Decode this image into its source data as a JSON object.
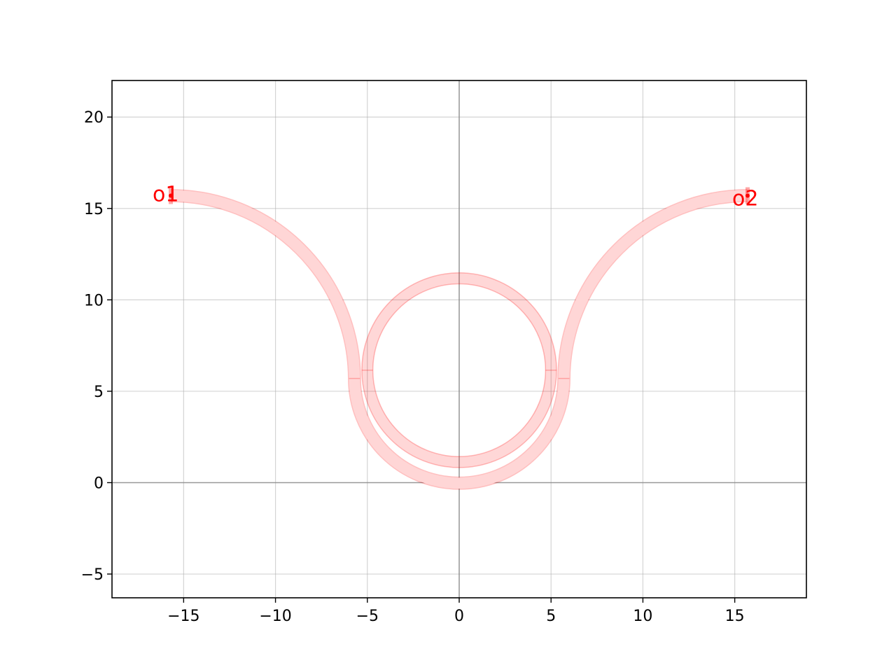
{
  "chart_data": {
    "type": "diagram",
    "xlim": [
      -18.9,
      18.9
    ],
    "ylim": [
      -6.3,
      22.0
    ],
    "x_ticks": [
      -15,
      -10,
      -5,
      0,
      5,
      10,
      15
    ],
    "y_ticks": [
      -5,
      0,
      5,
      10,
      15,
      20
    ],
    "x_tick_labels": [
      "−15",
      "−10",
      "−5",
      "0",
      "5",
      "10",
      "15"
    ],
    "y_tick_labels": [
      "−5",
      "0",
      "5",
      "10",
      "15",
      "20"
    ],
    "grid": true,
    "origin_axes": true,
    "waveguide_width": 0.6,
    "colors": {
      "waveguide_fill": "#ff000028",
      "waveguide_edge": "#ff000040",
      "port": "#ff0000",
      "grid": "#b0b0b0",
      "origin_axis": "#808080",
      "frame": "#000000"
    },
    "ring": {
      "center": [
        0,
        6.15
      ],
      "radius": 5.0
    },
    "bus": {
      "bottom_center": [
        0,
        5.7
      ],
      "bottom_radius": 5.7,
      "bend_radius": 10,
      "top_y": 15.7,
      "end_x": 15.7
    },
    "ports": [
      {
        "name": "o1",
        "x": -15.7,
        "y": 15.7
      },
      {
        "name": "o2",
        "x": 15.7,
        "y": 15.7
      }
    ]
  }
}
